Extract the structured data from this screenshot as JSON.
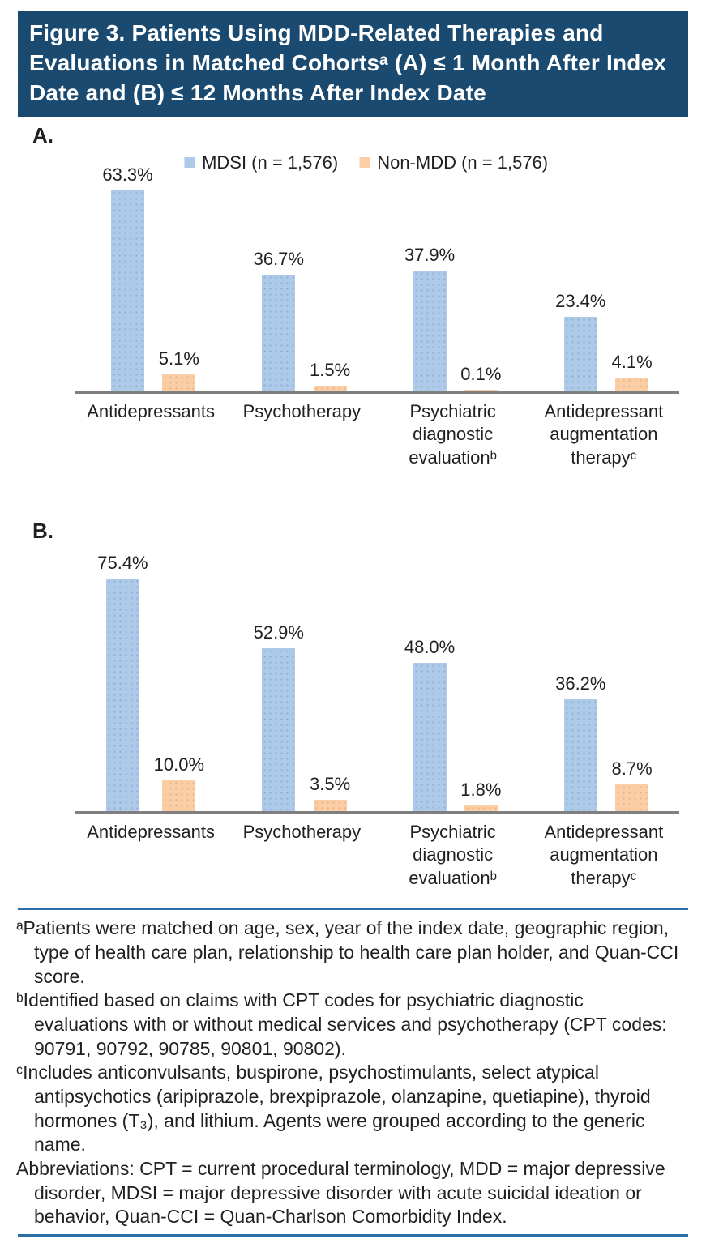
{
  "figure": {
    "title": "Figure 3. Patients Using MDD-Related Therapies and Evaluations in Matched Cohortsᵃ (A) ≤ 1 Month After Index Date and (B) ≤ 12 Months After Index Date"
  },
  "colors": {
    "header_bg": "#1b4a70",
    "mdsi_bar": "#aecae9",
    "nonmdd_bar": "#fbcea6",
    "axis_line": "#7f7f7f",
    "separator_line": "#2b6da8",
    "text": "#231f20"
  },
  "chart_data": [
    {
      "type": "bar",
      "panel_label": "A.",
      "title": "",
      "xlabel": "",
      "ylabel": "",
      "unit": "%",
      "ylim": [
        0,
        70
      ],
      "grid": false,
      "legend_position": "top-center",
      "categories": [
        "Antidepressants",
        "Psychotherapy",
        "Psychiatric diagnostic evaluationᵇ",
        "Antidepressant augmentation therapyᶜ"
      ],
      "series": [
        {
          "name": "MDSI (n = 1,576)",
          "color": "#aecae9",
          "values": [
            63.3,
            36.7,
            37.9,
            23.4
          ],
          "labels": [
            "63.3%",
            "36.7%",
            "37.9%",
            "23.4%"
          ]
        },
        {
          "name": "Non-MDD (n = 1,576)",
          "color": "#fbcea6",
          "values": [
            5.1,
            1.5,
            0.1,
            4.1
          ],
          "labels": [
            "5.1%",
            "1.5%",
            "0.1%",
            "4.1%"
          ]
        }
      ]
    },
    {
      "type": "bar",
      "panel_label": "B.",
      "title": "",
      "xlabel": "",
      "ylabel": "",
      "unit": "%",
      "ylim": [
        0,
        80
      ],
      "grid": false,
      "legend_position": "none",
      "categories": [
        "Antidepressants",
        "Psychotherapy",
        "Psychiatric diagnostic evaluationᵇ",
        "Antidepressant augmentation therapyᶜ"
      ],
      "series": [
        {
          "name": "MDSI (n = 1,576)",
          "color": "#aecae9",
          "values": [
            75.4,
            52.9,
            48.0,
            36.2
          ],
          "labels": [
            "75.4%",
            "52.9%",
            "48.0%",
            "36.2%"
          ]
        },
        {
          "name": "Non-MDD (n = 1,576)",
          "color": "#fbcea6",
          "values": [
            10.0,
            3.5,
            1.8,
            8.7
          ],
          "labels": [
            "10.0%",
            "3.5%",
            "1.8%",
            "8.7%"
          ]
        }
      ]
    }
  ],
  "footnotes": [
    "ᵃPatients were matched on age, sex, year of the index date, geographic region, type of health care plan, relationship to health care plan holder, and Quan-CCI score.",
    "ᵇIdentified based on claims with CPT codes for psychiatric diagnostic evaluations with or without medical services and psychotherapy (CPT codes: 90791, 90792, 90785, 90801, 90802).",
    "ᶜIncludes anticonvulsants, buspirone, psychostimulants, select atypical antipsychotics (aripiprazole, brexpiprazole, olanzapine, quetiapine), thyroid hormones (T₃), and lithium. Agents were grouped according to the generic name.",
    "Abbreviations: CPT = current procedural terminology, MDD = major depressive disorder, MDSI = major depressive disorder with acute suicidal ideation or behavior, Quan-CCI = Quan-Charlson Comorbidity Index."
  ]
}
